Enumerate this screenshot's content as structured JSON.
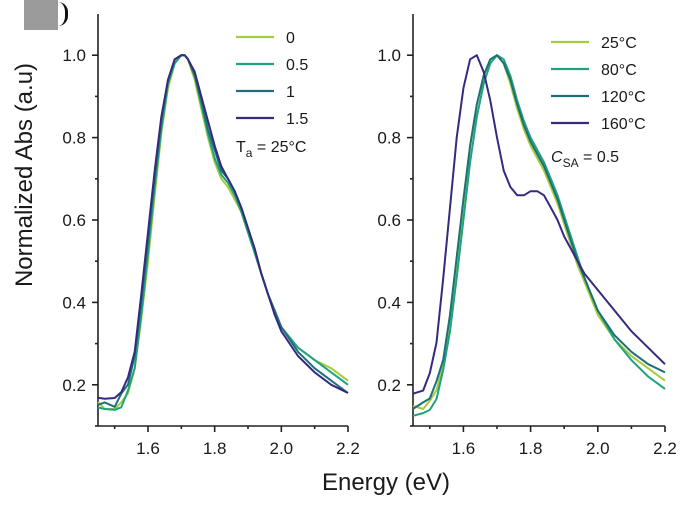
{
  "figure": {
    "ylabel": "Normalized Abs (a.u)",
    "xlabel": "Energy (eV)"
  },
  "chart_data": [
    {
      "type": "line",
      "title": "",
      "xlabel": "Energy (eV)",
      "ylabel": "Normalized Abs (a.u)",
      "xlim": [
        1.45,
        2.2
      ],
      "ylim": [
        0.1,
        1.1
      ],
      "xticks": [
        "1.6",
        "1.8",
        "2.0",
        "2.2"
      ],
      "yticks": [
        "0.2",
        "0.4",
        "0.6",
        "0.8",
        "1.0"
      ],
      "grid": false,
      "legend_position": "top-right",
      "annotation": "T_a = 25°C",
      "series": [
        {
          "name": "0",
          "color": "#a6cc3a",
          "x": [
            1.45,
            1.47,
            1.5,
            1.52,
            1.54,
            1.56,
            1.58,
            1.6,
            1.62,
            1.64,
            1.66,
            1.68,
            1.7,
            1.71,
            1.72,
            1.74,
            1.76,
            1.78,
            1.8,
            1.82,
            1.84,
            1.86,
            1.88,
            1.9,
            1.92,
            1.94,
            1.96,
            1.98,
            2.0,
            2.05,
            2.1,
            2.15,
            2.2
          ],
          "y": [
            0.15,
            0.15,
            0.14,
            0.16,
            0.18,
            0.24,
            0.36,
            0.5,
            0.66,
            0.81,
            0.92,
            0.98,
            1.0,
            1.0,
            0.99,
            0.94,
            0.87,
            0.8,
            0.74,
            0.7,
            0.68,
            0.65,
            0.62,
            0.57,
            0.52,
            0.47,
            0.42,
            0.38,
            0.34,
            0.29,
            0.26,
            0.24,
            0.21
          ]
        },
        {
          "name": "0.5",
          "color": "#1fa37f",
          "x": [
            1.45,
            1.47,
            1.5,
            1.52,
            1.54,
            1.56,
            1.58,
            1.6,
            1.62,
            1.64,
            1.66,
            1.68,
            1.7,
            1.71,
            1.72,
            1.74,
            1.76,
            1.78,
            1.8,
            1.82,
            1.84,
            1.86,
            1.88,
            1.9,
            1.92,
            1.94,
            1.96,
            1.98,
            2.0,
            2.05,
            2.1,
            2.15,
            2.2
          ],
          "y": [
            0.14,
            0.14,
            0.14,
            0.15,
            0.18,
            0.24,
            0.37,
            0.52,
            0.68,
            0.82,
            0.93,
            0.98,
            1.0,
            1.0,
            0.99,
            0.95,
            0.88,
            0.81,
            0.75,
            0.71,
            0.69,
            0.66,
            0.62,
            0.57,
            0.52,
            0.47,
            0.42,
            0.38,
            0.34,
            0.29,
            0.26,
            0.23,
            0.2
          ]
        },
        {
          "name": "1",
          "color": "#1f6f7a",
          "x": [
            1.45,
            1.47,
            1.5,
            1.52,
            1.54,
            1.56,
            1.58,
            1.6,
            1.62,
            1.64,
            1.66,
            1.68,
            1.7,
            1.71,
            1.72,
            1.74,
            1.76,
            1.78,
            1.8,
            1.82,
            1.84,
            1.86,
            1.88,
            1.9,
            1.92,
            1.94,
            1.96,
            1.98,
            2.0,
            2.05,
            2.1,
            2.15,
            2.2
          ],
          "y": [
            0.16,
            0.16,
            0.15,
            0.17,
            0.2,
            0.27,
            0.4,
            0.55,
            0.7,
            0.84,
            0.94,
            0.99,
            1.0,
            1.0,
            0.99,
            0.95,
            0.89,
            0.82,
            0.77,
            0.72,
            0.7,
            0.67,
            0.63,
            0.58,
            0.53,
            0.47,
            0.42,
            0.38,
            0.34,
            0.28,
            0.24,
            0.21,
            0.18
          ]
        },
        {
          "name": "1.5",
          "color": "#342a80",
          "x": [
            1.45,
            1.47,
            1.5,
            1.52,
            1.54,
            1.56,
            1.58,
            1.6,
            1.62,
            1.64,
            1.66,
            1.68,
            1.7,
            1.71,
            1.72,
            1.74,
            1.76,
            1.78,
            1.8,
            1.82,
            1.84,
            1.86,
            1.88,
            1.9,
            1.92,
            1.94,
            1.96,
            1.98,
            2.0,
            2.05,
            2.1,
            2.15,
            2.2
          ],
          "y": [
            0.17,
            0.17,
            0.16,
            0.18,
            0.21,
            0.28,
            0.42,
            0.57,
            0.72,
            0.85,
            0.94,
            0.99,
            1.0,
            1.0,
            0.99,
            0.96,
            0.9,
            0.84,
            0.78,
            0.73,
            0.7,
            0.67,
            0.63,
            0.58,
            0.53,
            0.47,
            0.42,
            0.37,
            0.33,
            0.27,
            0.23,
            0.2,
            0.18
          ]
        }
      ]
    },
    {
      "type": "line",
      "title": "",
      "xlabel": "Energy (eV)",
      "ylabel": "Normalized Abs (a.u)",
      "xlim": [
        1.45,
        2.2
      ],
      "ylim": [
        0.1,
        1.1
      ],
      "xticks": [
        "1.6",
        "1.8",
        "2.0",
        "2.2"
      ],
      "yticks": [
        "0.2",
        "0.4",
        "0.6",
        "0.8",
        "1.0"
      ],
      "grid": false,
      "legend_position": "top-right",
      "annotation": "C_SA = 0.5",
      "series": [
        {
          "name": "25°C",
          "color": "#a6cc3a",
          "x": [
            1.45,
            1.48,
            1.5,
            1.52,
            1.54,
            1.56,
            1.58,
            1.6,
            1.62,
            1.64,
            1.66,
            1.68,
            1.7,
            1.72,
            1.74,
            1.76,
            1.78,
            1.8,
            1.82,
            1.84,
            1.86,
            1.88,
            1.9,
            1.92,
            1.94,
            1.96,
            1.98,
            2.0,
            2.05,
            2.1,
            2.15,
            2.2
          ],
          "y": [
            0.14,
            0.15,
            0.16,
            0.19,
            0.25,
            0.36,
            0.5,
            0.64,
            0.78,
            0.88,
            0.95,
            0.99,
            1.0,
            0.98,
            0.93,
            0.87,
            0.82,
            0.78,
            0.75,
            0.72,
            0.68,
            0.64,
            0.59,
            0.54,
            0.49,
            0.45,
            0.41,
            0.37,
            0.31,
            0.27,
            0.24,
            0.21
          ]
        },
        {
          "name": "80°C",
          "color": "#1fa37f",
          "x": [
            1.45,
            1.48,
            1.5,
            1.52,
            1.54,
            1.56,
            1.58,
            1.6,
            1.62,
            1.64,
            1.66,
            1.68,
            1.7,
            1.72,
            1.74,
            1.76,
            1.78,
            1.8,
            1.82,
            1.84,
            1.86,
            1.88,
            1.9,
            1.92,
            1.94,
            1.96,
            1.98,
            2.0,
            2.05,
            2.1,
            2.15,
            2.2
          ],
          "y": [
            0.12,
            0.13,
            0.14,
            0.17,
            0.23,
            0.33,
            0.46,
            0.6,
            0.74,
            0.85,
            0.93,
            0.98,
            1.0,
            0.99,
            0.95,
            0.89,
            0.84,
            0.8,
            0.77,
            0.74,
            0.7,
            0.66,
            0.61,
            0.56,
            0.51,
            0.46,
            0.42,
            0.38,
            0.31,
            0.26,
            0.22,
            0.19
          ]
        },
        {
          "name": "120°C",
          "color": "#1f6f7a",
          "x": [
            1.45,
            1.48,
            1.5,
            1.52,
            1.54,
            1.56,
            1.58,
            1.6,
            1.62,
            1.64,
            1.66,
            1.68,
            1.7,
            1.72,
            1.74,
            1.76,
            1.78,
            1.8,
            1.82,
            1.84,
            1.86,
            1.88,
            1.9,
            1.92,
            1.94,
            1.96,
            1.98,
            2.0,
            2.05,
            2.1,
            2.15,
            2.2
          ],
          "y": [
            0.15,
            0.16,
            0.17,
            0.2,
            0.26,
            0.37,
            0.51,
            0.65,
            0.78,
            0.88,
            0.95,
            0.99,
            1.0,
            0.98,
            0.94,
            0.88,
            0.83,
            0.79,
            0.76,
            0.73,
            0.69,
            0.65,
            0.6,
            0.55,
            0.5,
            0.46,
            0.42,
            0.38,
            0.32,
            0.28,
            0.25,
            0.23
          ]
        },
        {
          "name": "160°C",
          "color": "#342a80",
          "x": [
            1.45,
            1.48,
            1.5,
            1.52,
            1.54,
            1.56,
            1.58,
            1.6,
            1.62,
            1.64,
            1.66,
            1.68,
            1.7,
            1.72,
            1.74,
            1.76,
            1.78,
            1.8,
            1.82,
            1.84,
            1.86,
            1.88,
            1.9,
            1.92,
            1.94,
            1.96,
            1.98,
            2.0,
            2.05,
            2.1,
            2.15,
            2.2
          ],
          "y": [
            0.18,
            0.19,
            0.22,
            0.3,
            0.45,
            0.63,
            0.8,
            0.92,
            0.99,
            1.0,
            0.96,
            0.89,
            0.8,
            0.72,
            0.68,
            0.66,
            0.66,
            0.67,
            0.67,
            0.66,
            0.63,
            0.6,
            0.56,
            0.53,
            0.5,
            0.47,
            0.45,
            0.43,
            0.38,
            0.33,
            0.29,
            0.25
          ]
        }
      ]
    }
  ]
}
